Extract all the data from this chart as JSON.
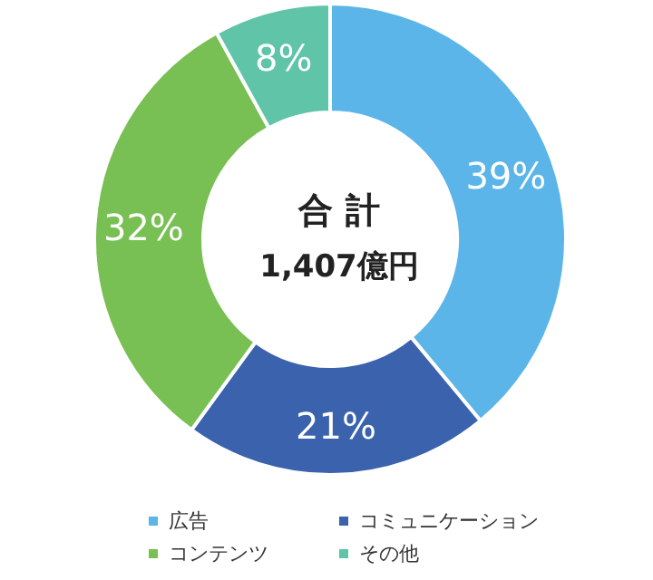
{
  "chart_data": {
    "type": "donut",
    "title": "合 計",
    "subtitle": "1,407億円",
    "categories": [
      "広告",
      "コミュニケーション",
      "コンテンツ",
      "その他"
    ],
    "values": [
      39,
      21,
      32,
      8
    ],
    "colors": [
      "#5bb5e8",
      "#3a62ad",
      "#78c053",
      "#5fc4a8"
    ],
    "value_labels": [
      "39%",
      "21%",
      "32%",
      "8%"
    ],
    "legend": "bottom"
  }
}
